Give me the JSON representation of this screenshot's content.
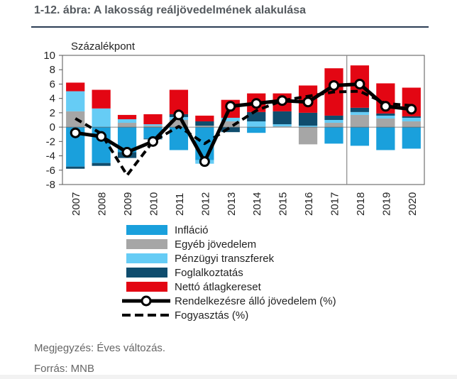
{
  "title": "1-12. ábra: A lakosság reáljövedelmének alakulása",
  "footnote": "Megjegyzés: Éves változás.",
  "source": "Forrás: MNB",
  "chart_data": {
    "type": "bar",
    "ylabel": "Százalékpont",
    "ylim": [
      -8,
      10
    ],
    "yticks": [
      10,
      8,
      6,
      4,
      2,
      0,
      -2,
      -4,
      -6,
      -8
    ],
    "categories": [
      "2007",
      "2008",
      "2009",
      "2010",
      "2011",
      "2012",
      "2013",
      "2014",
      "2015",
      "2016",
      "2017",
      "2018",
      "2019",
      "2020"
    ],
    "forecast_divider_after": "2017",
    "stacked_series": [
      {
        "name": "Infláció",
        "color": "#1aa0dc",
        "values": [
          -5.5,
          -5.0,
          -3.5,
          -1.6,
          -3.2,
          -4.6,
          0.0,
          -0.8,
          0.0,
          0.0,
          -2.3,
          -2.6,
          -3.2,
          -3.0
        ]
      },
      {
        "name": "Egyéb jövedelem",
        "color": "#a6a6a6",
        "values": [
          2.2,
          0,
          0.6,
          0.2,
          1.0,
          0.2,
          0.8,
          0,
          0.1,
          -2.4,
          0.6,
          1.7,
          1.2,
          0.8
        ]
      },
      {
        "name": "Pénzügyi transzferek",
        "color": "#66ccf5",
        "values": [
          2.8,
          2.6,
          0.5,
          0.2,
          0.4,
          -0.5,
          0.5,
          0.8,
          0.3,
          0.2,
          0.4,
          0.4,
          0.4,
          0.5
        ]
      },
      {
        "name": "Foglalkoztatás",
        "color": "#0f4d6e",
        "values": [
          -0.3,
          -0.4,
          -0.8,
          -0.1,
          0.4,
          0.6,
          -0.7,
          1.3,
          1.8,
          1.8,
          0.6,
          0.6,
          0.3,
          0.2
        ]
      },
      {
        "name": "Nettó átlagkereset",
        "color": "#e30613",
        "values": [
          1.2,
          2.6,
          0.6,
          1.4,
          3.4,
          0.8,
          2.5,
          2.6,
          2.5,
          3.8,
          6.6,
          5.9,
          4.2,
          4.0
        ]
      }
    ],
    "line_series": [
      {
        "name": "Rendelkezésre álló jövedelem (%)",
        "style": "solid-markers",
        "values": [
          -0.8,
          -1.3,
          -3.5,
          -2.0,
          1.7,
          -4.8,
          2.9,
          3.3,
          3.7,
          3.5,
          5.8,
          6.0,
          2.9,
          2.5
        ]
      },
      {
        "name": "Fogyasztás (%)",
        "style": "dashed",
        "values": [
          1.2,
          -0.9,
          -6.7,
          -2.0,
          0.1,
          -2.3,
          0.0,
          2.3,
          3.7,
          null,
          4.9,
          5.0,
          3.3,
          3.0
        ]
      }
    ],
    "legend_position": "bottom"
  }
}
